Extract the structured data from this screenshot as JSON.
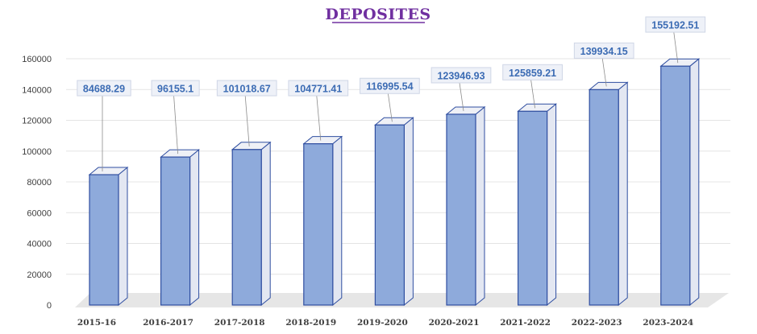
{
  "chart_data": {
    "type": "bar",
    "title": "DEPOSITES",
    "categories": [
      "2015-16",
      "2016-2017",
      "2017-2018",
      "2018-2019",
      "2019-2020",
      "2020-2021",
      "2021-2022",
      "2022-2023",
      "2023-2024"
    ],
    "values": [
      84688.29,
      96155.1,
      101018.67,
      104771.41,
      116995.54,
      123946.93,
      125859.21,
      139934.15,
      155192.51
    ],
    "data_labels": [
      "84688.29",
      "96155.1",
      "101018.67",
      "104771.41",
      "116995.54",
      "123946.93",
      "125859.21",
      "139934.15",
      "155192.51"
    ],
    "yticks": [
      0,
      20000,
      40000,
      60000,
      80000,
      100000,
      120000,
      140000,
      160000
    ],
    "ylim": [
      0,
      160000
    ],
    "grid": true,
    "legend": "none",
    "bar_color": "#8eaadb",
    "bar_edge_color": "#2f4ea0",
    "label_color": "#3c6cb4",
    "title_color": "#7030a0"
  }
}
